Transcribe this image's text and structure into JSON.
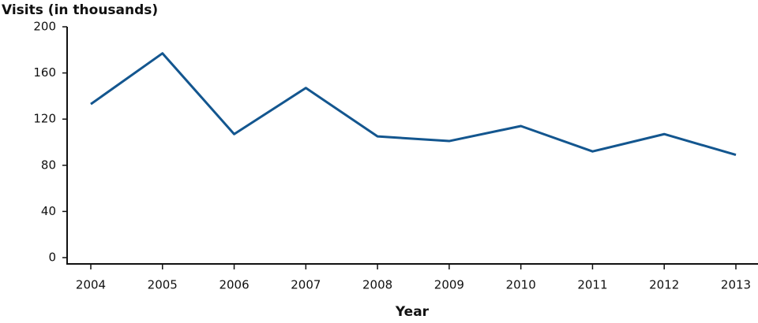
{
  "chart_data": {
    "type": "line",
    "y_label": "Visits (in thousands)",
    "x_label": "Year",
    "categories": [
      "2004",
      "2005",
      "2006",
      "2007",
      "2008",
      "2009",
      "2010",
      "2011",
      "2012",
      "2013"
    ],
    "series": [
      {
        "name": "Visits",
        "color": "#13568f",
        "values": [
          133,
          177,
          107,
          147,
          105,
          101,
          114,
          92,
          107,
          89
        ]
      }
    ],
    "ylim": [
      0,
      200
    ],
    "yticks": [
      0,
      40,
      80,
      120,
      160,
      200
    ],
    "grid": false
  }
}
